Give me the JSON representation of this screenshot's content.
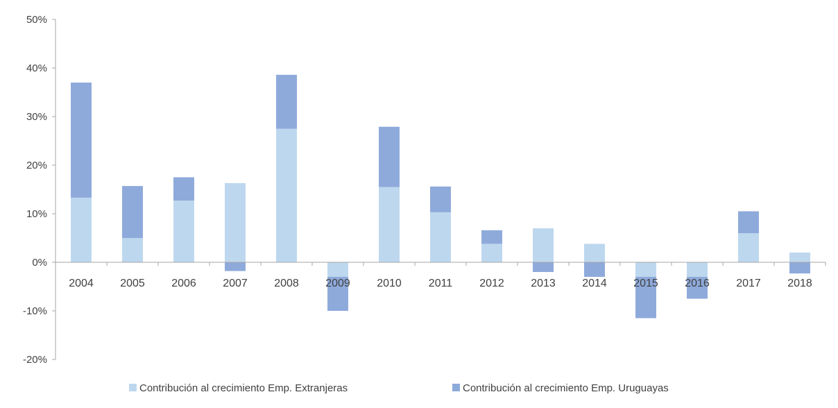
{
  "chart_data": {
    "type": "bar",
    "stacked": true,
    "categories": [
      "2004",
      "2005",
      "2006",
      "2007",
      "2008",
      "2009",
      "2010",
      "2011",
      "2012",
      "2013",
      "2014",
      "2015",
      "2016",
      "2017",
      "2018"
    ],
    "series": [
      {
        "name": "Contribución al crecimiento Emp. Extranjeras",
        "color": "#bdd7ee",
        "values": [
          13.3,
          5.0,
          12.7,
          16.3,
          27.5,
          -3.0,
          15.5,
          10.3,
          3.8,
          7.0,
          3.8,
          -3.0,
          -3.0,
          6.0,
          2.0
        ]
      },
      {
        "name": "Contribución al crecimiento Emp. Uruguayas",
        "color": "#8eaadb",
        "values": [
          23.7,
          10.7,
          4.8,
          -1.8,
          11.1,
          -7.0,
          12.4,
          5.3,
          2.8,
          -2.0,
          -3.0,
          -8.5,
          -4.5,
          4.5,
          -2.3
        ]
      }
    ],
    "ylim": [
      -20,
      50
    ],
    "yticks": [
      -20,
      -10,
      0,
      10,
      20,
      30,
      40,
      50
    ],
    "ytick_labels": [
      "-20%",
      "-10%",
      "0%",
      "10%",
      "20%",
      "30%",
      "40%",
      "50%"
    ],
    "grid": false,
    "legend_position": "bottom"
  }
}
